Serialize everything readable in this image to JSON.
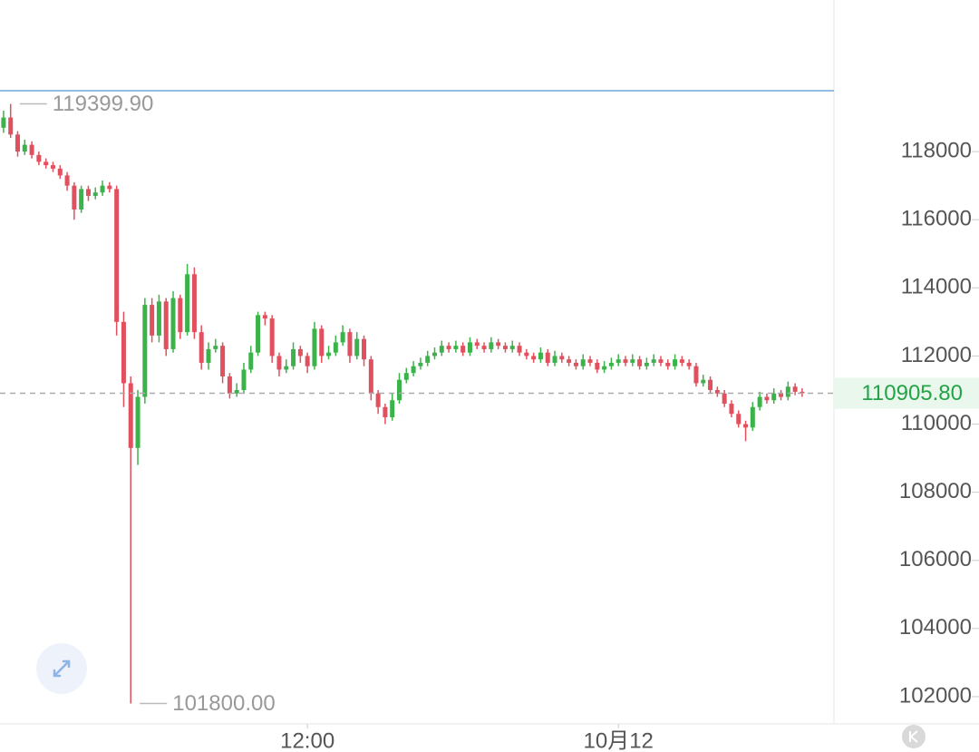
{
  "chart_data": {
    "type": "candlestick",
    "up_color": "#3cb34a",
    "down_color": "#e0505e",
    "ylim": [
      101200,
      122450
    ],
    "yticks": [
      102000,
      104000,
      106000,
      108000,
      110000,
      112000,
      114000,
      116000,
      118000
    ],
    "xlim": [
      -0.5,
      117.5
    ],
    "xticks": [
      {
        "value": 43,
        "label": "12:00"
      },
      {
        "value": 87,
        "label": "10月12"
      }
    ],
    "high_marker": {
      "value": 119399.9,
      "label": "119399.90"
    },
    "low_marker": {
      "value": 101800,
      "label": "101800.00"
    },
    "last_price": {
      "value": 110905.8,
      "label": "110905.80"
    },
    "ohlc": [
      [
        118700,
        119200,
        118550,
        119000
      ],
      [
        119000,
        119399.9,
        118400,
        118500
      ],
      [
        118500,
        118600,
        117850,
        118000
      ],
      [
        118000,
        118350,
        117900,
        118200
      ],
      [
        118200,
        118300,
        117800,
        117900
      ],
      [
        117900,
        118000,
        117600,
        117700
      ],
      [
        117700,
        117800,
        117500,
        117600
      ],
      [
        117600,
        117700,
        117400,
        117500
      ],
      [
        117500,
        117600,
        117200,
        117300
      ],
      [
        117300,
        117400,
        116850,
        117000
      ],
      [
        117000,
        117100,
        116000,
        116300
      ],
      [
        116300,
        117000,
        116200,
        116900
      ],
      [
        116900,
        117000,
        116550,
        116700
      ],
      [
        116700,
        116950,
        116600,
        116800
      ],
      [
        116800,
        117150,
        116700,
        117000
      ],
      [
        117000,
        117100,
        116800,
        116900
      ],
      [
        116900,
        117000,
        112600,
        113000
      ],
      [
        113000,
        113300,
        110500,
        111200
      ],
      [
        111200,
        111400,
        101800,
        109300
      ],
      [
        109300,
        111000,
        108800,
        110800
      ],
      [
        110800,
        113700,
        110600,
        113500
      ],
      [
        113500,
        113700,
        112400,
        112600
      ],
      [
        112600,
        113800,
        112400,
        113600
      ],
      [
        113600,
        113700,
        112000,
        112200
      ],
      [
        112200,
        113900,
        112100,
        113700
      ],
      [
        113700,
        113800,
        112500,
        112700
      ],
      [
        112700,
        114700,
        112600,
        114400
      ],
      [
        114400,
        114600,
        112500,
        112700
      ],
      [
        112700,
        112900,
        111600,
        111800
      ],
      [
        111800,
        112400,
        111600,
        112200
      ],
      [
        112200,
        112500,
        112100,
        112300
      ],
      [
        112300,
        112400,
        111200,
        111400
      ],
      [
        111400,
        111500,
        110750,
        110900
      ],
      [
        110900,
        111200,
        110800,
        111000
      ],
      [
        111000,
        111800,
        110900,
        111600
      ],
      [
        111600,
        112300,
        111500,
        112100
      ],
      [
        112100,
        113300,
        112000,
        113200
      ],
      [
        113200,
        113300,
        112900,
        113100
      ],
      [
        113100,
        113200,
        111800,
        112000
      ],
      [
        112000,
        112100,
        111400,
        111600
      ],
      [
        111600,
        111900,
        111500,
        111700
      ],
      [
        111700,
        112400,
        111600,
        112200
      ],
      [
        112200,
        112300,
        111800,
        112000
      ],
      [
        112000,
        112100,
        111500,
        111700
      ],
      [
        111700,
        113000,
        111600,
        112800
      ],
      [
        112800,
        112900,
        111800,
        112000
      ],
      [
        112000,
        112300,
        111900,
        112100
      ],
      [
        112100,
        112600,
        112000,
        112400
      ],
      [
        112400,
        112900,
        112300,
        112700
      ],
      [
        112700,
        112800,
        111800,
        112000
      ],
      [
        112000,
        112700,
        111900,
        112500
      ],
      [
        112500,
        112600,
        111700,
        111900
      ],
      [
        111900,
        112000,
        110700,
        110900
      ],
      [
        110900,
        111000,
        110300,
        110500
      ],
      [
        110500,
        110600,
        110000,
        110200
      ],
      [
        110200,
        110900,
        110100,
        110700
      ],
      [
        110700,
        111500,
        110600,
        111300
      ],
      [
        111300,
        111650,
        111200,
        111500
      ],
      [
        111500,
        111850,
        111400,
        111700
      ],
      [
        111700,
        111950,
        111600,
        111800
      ],
      [
        111800,
        112150,
        111700,
        112000
      ],
      [
        112000,
        112250,
        111900,
        112100
      ],
      [
        112100,
        112450,
        112000,
        112300
      ],
      [
        112300,
        112400,
        112100,
        112200
      ],
      [
        112200,
        112450,
        112100,
        112300
      ],
      [
        112300,
        112400,
        112000,
        112100
      ],
      [
        112100,
        112550,
        112000,
        112400
      ],
      [
        112400,
        112500,
        112200,
        112300
      ],
      [
        112300,
        112400,
        112100,
        112200
      ],
      [
        112200,
        112550,
        112100,
        112400
      ],
      [
        112400,
        112500,
        112200,
        112300
      ],
      [
        112300,
        112400,
        112100,
        112200
      ],
      [
        112200,
        112450,
        112100,
        112300
      ],
      [
        112300,
        112400,
        112000,
        112100
      ],
      [
        112100,
        112200,
        111900,
        112000
      ],
      [
        112000,
        112100,
        111800,
        111900
      ],
      [
        111900,
        112250,
        111800,
        112100
      ],
      [
        112100,
        112200,
        111700,
        111800
      ],
      [
        111800,
        112150,
        111700,
        112000
      ],
      [
        112000,
        112100,
        111800,
        111900
      ],
      [
        111900,
        112000,
        111700,
        111800
      ],
      [
        111800,
        111900,
        111600,
        111700
      ],
      [
        111700,
        112050,
        111600,
        111900
      ],
      [
        111900,
        112000,
        111700,
        111800
      ],
      [
        111800,
        111900,
        111500,
        111600
      ],
      [
        111600,
        111850,
        111500,
        111700
      ],
      [
        111700,
        111950,
        111600,
        111800
      ],
      [
        111800,
        112050,
        111700,
        111900
      ],
      [
        111900,
        112000,
        111700,
        111800
      ],
      [
        111800,
        112050,
        111700,
        111900
      ],
      [
        111900,
        112000,
        111600,
        111700
      ],
      [
        111700,
        111950,
        111600,
        111800
      ],
      [
        111800,
        112050,
        111700,
        111900
      ],
      [
        111900,
        112000,
        111700,
        111800
      ],
      [
        111800,
        111900,
        111600,
        111700
      ],
      [
        111700,
        112050,
        111600,
        111900
      ],
      [
        111900,
        112000,
        111700,
        111800
      ],
      [
        111800,
        111900,
        111600,
        111700
      ],
      [
        111700,
        111800,
        111100,
        111200
      ],
      [
        111200,
        111450,
        111100,
        111300
      ],
      [
        111300,
        111400,
        110900,
        111000
      ],
      [
        111000,
        111100,
        110800,
        110900
      ],
      [
        110900,
        111000,
        110500,
        110600
      ],
      [
        110600,
        110700,
        110200,
        110300
      ],
      [
        110300,
        110400,
        109900,
        110000
      ],
      [
        110000,
        110100,
        109500,
        109900
      ],
      [
        109900,
        110650,
        109800,
        110500
      ],
      [
        110500,
        110950,
        110400,
        110800
      ],
      [
        110800,
        110900,
        110600,
        110700
      ],
      [
        110700,
        111050,
        110600,
        110900
      ],
      [
        110900,
        111000,
        110700,
        110800
      ],
      [
        110800,
        111250,
        110700,
        111100
      ],
      [
        111100,
        111200,
        110850,
        110950
      ],
      [
        110950,
        111050,
        110800,
        110905.8
      ]
    ]
  }
}
